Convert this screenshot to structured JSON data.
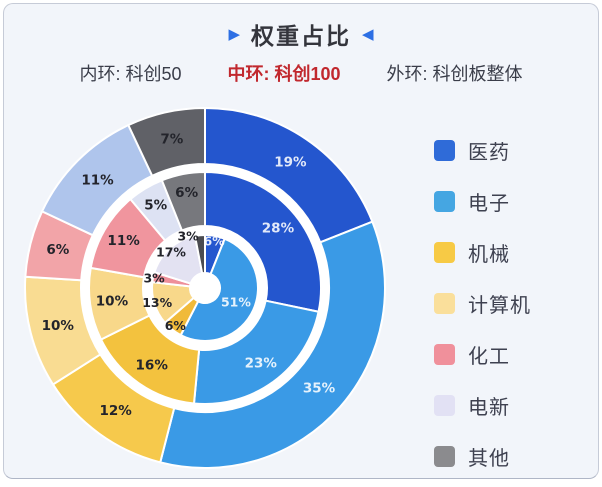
{
  "title": {
    "left_icon": "▶",
    "text": "权重占比",
    "right_icon": "◀"
  },
  "subtitle": {
    "inner_label": "内环: 科创50",
    "middle_label": "中环: 科创100",
    "outer_label": "外环: 科创板整体"
  },
  "legend": {
    "items": [
      {
        "label": "医药",
        "color": "#2F6BD8"
      },
      {
        "label": "电子",
        "color": "#45A6E2"
      },
      {
        "label": "机械",
        "color": "#F7CA45"
      },
      {
        "label": "计算机",
        "color": "#FADF9B"
      },
      {
        "label": "化工",
        "color": "#F0909B"
      },
      {
        "label": "电新",
        "color": "#E2E1F4"
      },
      {
        "label": "其他",
        "color": "#8B8B8E"
      }
    ]
  },
  "chart_data": {
    "type": "pie",
    "variant": "nested-donut",
    "unit": "%",
    "categories": [
      "医药",
      "电子",
      "机械",
      "计算机",
      "化工",
      "电新",
      "其他"
    ],
    "center": [
      201,
      284
    ],
    "hole_radius": 15,
    "gap_fill": "#FFFFFF",
    "slice_stroke": "#FFFFFF",
    "label_color_dark": "#23242B",
    "label_color_light": "rgba(255,255,255,0.87)",
    "rings": [
      {
        "name": "科创板整体",
        "position": "outer",
        "values": [
          19,
          35,
          12,
          10,
          6,
          11,
          7
        ],
        "colors": [
          "#2456CE",
          "#3A9AE6",
          "#F6C94C",
          "#F9DC92",
          "#F2A4A8",
          "#AFC5EC",
          "#606167"
        ],
        "light_label_indices": [
          0,
          1
        ],
        "radii": [
          124,
          180
        ],
        "label_r": [
          152,
          152,
          152,
          152,
          152,
          152,
          152
        ],
        "label_dx": [
          0,
          0,
          0,
          0,
          0,
          0,
          0
        ],
        "font_size": 13.5
      },
      {
        "name": "科创100",
        "position": "middle",
        "values": [
          28,
          23,
          16,
          10,
          11,
          5,
          6
        ],
        "colors": [
          "#2456CE",
          "#3A9AE6",
          "#F3C23E",
          "#F8D88A",
          "#F0959E",
          "#DDE2F3",
          "#77787D"
        ],
        "light_label_indices": [
          0,
          1
        ],
        "radii": [
          62,
          116
        ],
        "label_r": [
          94,
          94,
          94,
          94,
          94,
          96,
          97
        ],
        "label_dx": [
          0,
          0,
          0,
          0,
          0,
          0,
          0
        ],
        "font_size": 13.5
      },
      {
        "name": "科创50",
        "position": "inner",
        "values": [
          6,
          51,
          6,
          13,
          3,
          17,
          3
        ],
        "colors": [
          "#2456CE",
          "#3A9AE6",
          "#F0BA3A",
          "#F8D88A",
          "#EE8F9A",
          "#E3E2F2",
          "#4A4B50"
        ],
        "light_label_indices": [
          0,
          1
        ],
        "radii": [
          15,
          53
        ],
        "label_r": [
          48,
          34,
          48,
          48,
          50,
          48,
          52
        ],
        "label_dx": [
          0,
          0,
          0,
          -2,
          -2,
          -2,
          -12
        ],
        "font_size": 12.5
      }
    ]
  }
}
